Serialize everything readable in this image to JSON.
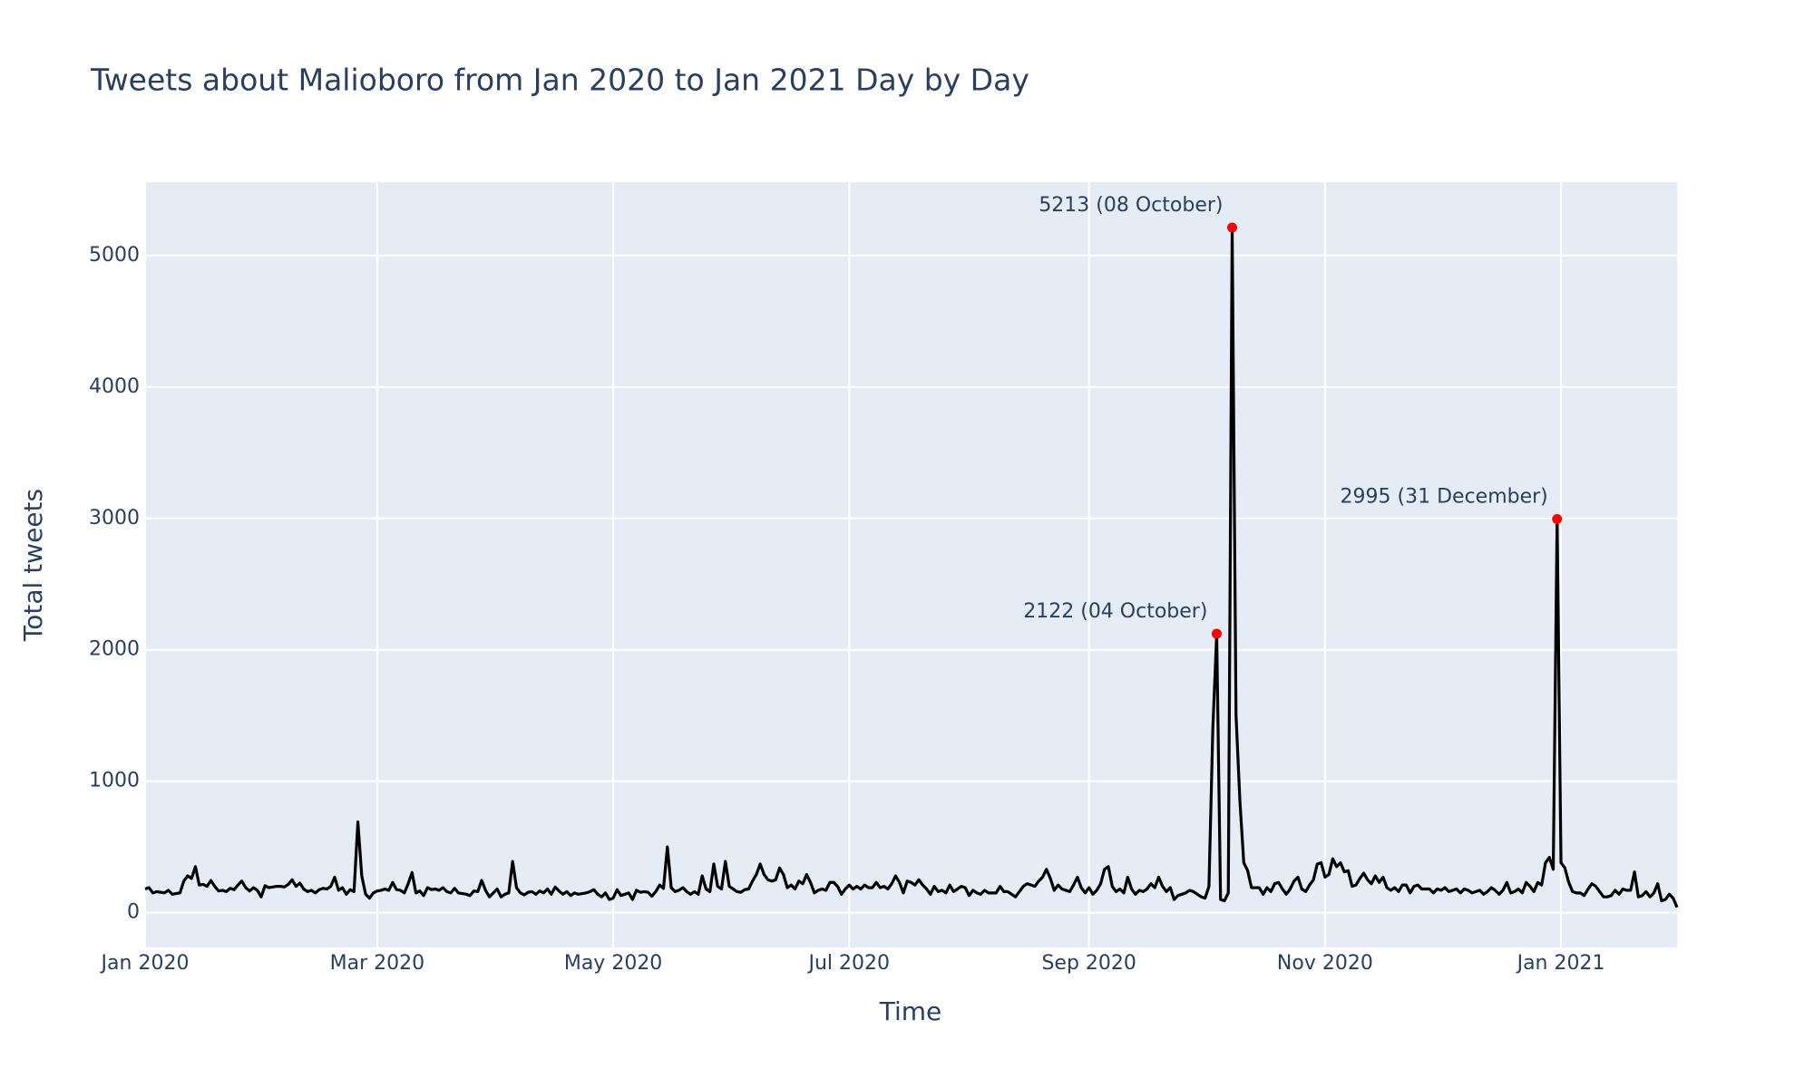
{
  "chart_data": {
    "type": "line",
    "title": "Tweets about Malioboro from Jan 2020 to Jan 2021 Day by Day",
    "x_label": "Time",
    "y_label": "Total tweets",
    "x": [
      "2020-01-01",
      "2020-01-02",
      "2020-01-03",
      "2020-01-04",
      "2020-01-05",
      "2020-01-06",
      "2020-01-07",
      "2020-01-08",
      "2020-01-09",
      "2020-01-10",
      "2020-01-11",
      "2020-01-12",
      "2020-01-13",
      "2020-01-14",
      "2020-01-15",
      "2020-01-16",
      "2020-01-17",
      "2020-01-18",
      "2020-01-19",
      "2020-01-20",
      "2020-01-21",
      "2020-01-22",
      "2020-01-23",
      "2020-01-24",
      "2020-01-25",
      "2020-01-26",
      "2020-01-27",
      "2020-01-28",
      "2020-01-29",
      "2020-01-30",
      "2020-01-31",
      "2020-02-01",
      "2020-02-02",
      "2020-02-03",
      "2020-02-04",
      "2020-02-05",
      "2020-02-06",
      "2020-02-07",
      "2020-02-08",
      "2020-02-09",
      "2020-02-10",
      "2020-02-11",
      "2020-02-12",
      "2020-02-13",
      "2020-02-14",
      "2020-02-15",
      "2020-02-16",
      "2020-02-17",
      "2020-02-18",
      "2020-02-19",
      "2020-02-20",
      "2020-02-21",
      "2020-02-22",
      "2020-02-23",
      "2020-02-24",
      "2020-02-25",
      "2020-02-26",
      "2020-02-27",
      "2020-02-28",
      "2020-02-29",
      "2020-03-01",
      "2020-03-02",
      "2020-03-03",
      "2020-03-04",
      "2020-03-05",
      "2020-03-06",
      "2020-03-07",
      "2020-03-08",
      "2020-03-09",
      "2020-03-10",
      "2020-03-11",
      "2020-03-12",
      "2020-03-13",
      "2020-03-14",
      "2020-03-15",
      "2020-03-16",
      "2020-03-17",
      "2020-03-18",
      "2020-03-19",
      "2020-03-20",
      "2020-03-21",
      "2020-03-22",
      "2020-03-23",
      "2020-03-24",
      "2020-03-25",
      "2020-03-26",
      "2020-03-27",
      "2020-03-28",
      "2020-03-29",
      "2020-03-30",
      "2020-03-31",
      "2020-04-01",
      "2020-04-02",
      "2020-04-03",
      "2020-04-04",
      "2020-04-05",
      "2020-04-06",
      "2020-04-07",
      "2020-04-08",
      "2020-04-09",
      "2020-04-10",
      "2020-04-11",
      "2020-04-12",
      "2020-04-13",
      "2020-04-14",
      "2020-04-15",
      "2020-04-16",
      "2020-04-17",
      "2020-04-18",
      "2020-04-19",
      "2020-04-20",
      "2020-04-21",
      "2020-04-22",
      "2020-04-23",
      "2020-04-24",
      "2020-04-25",
      "2020-04-26",
      "2020-04-27",
      "2020-04-28",
      "2020-04-29",
      "2020-04-30",
      "2020-05-01",
      "2020-05-02",
      "2020-05-03",
      "2020-05-04",
      "2020-05-05",
      "2020-05-06",
      "2020-05-07",
      "2020-05-08",
      "2020-05-09",
      "2020-05-10",
      "2020-05-11",
      "2020-05-12",
      "2020-05-13",
      "2020-05-14",
      "2020-05-15",
      "2020-05-16",
      "2020-05-17",
      "2020-05-18",
      "2020-05-19",
      "2020-05-20",
      "2020-05-21",
      "2020-05-22",
      "2020-05-23",
      "2020-05-24",
      "2020-05-25",
      "2020-05-26",
      "2020-05-27",
      "2020-05-28",
      "2020-05-29",
      "2020-05-30",
      "2020-05-31",
      "2020-06-01",
      "2020-06-02",
      "2020-06-03",
      "2020-06-04",
      "2020-06-05",
      "2020-06-06",
      "2020-06-07",
      "2020-06-08",
      "2020-06-09",
      "2020-06-10",
      "2020-06-11",
      "2020-06-12",
      "2020-06-13",
      "2020-06-14",
      "2020-06-15",
      "2020-06-16",
      "2020-06-17",
      "2020-06-18",
      "2020-06-19",
      "2020-06-20",
      "2020-06-21",
      "2020-06-22",
      "2020-06-23",
      "2020-06-24",
      "2020-06-25",
      "2020-06-26",
      "2020-06-27",
      "2020-06-28",
      "2020-06-29",
      "2020-06-30",
      "2020-07-01",
      "2020-07-02",
      "2020-07-03",
      "2020-07-04",
      "2020-07-05",
      "2020-07-06",
      "2020-07-07",
      "2020-07-08",
      "2020-07-09",
      "2020-07-10",
      "2020-07-11",
      "2020-07-12",
      "2020-07-13",
      "2020-07-14",
      "2020-07-15",
      "2020-07-16",
      "2020-07-17",
      "2020-07-18",
      "2020-07-19",
      "2020-07-20",
      "2020-07-21",
      "2020-07-22",
      "2020-07-23",
      "2020-07-24",
      "2020-07-25",
      "2020-07-26",
      "2020-07-27",
      "2020-07-28",
      "2020-07-29",
      "2020-07-30",
      "2020-07-31",
      "2020-08-01",
      "2020-08-02",
      "2020-08-03",
      "2020-08-04",
      "2020-08-05",
      "2020-08-06",
      "2020-08-07",
      "2020-08-08",
      "2020-08-09",
      "2020-08-10",
      "2020-08-11",
      "2020-08-12",
      "2020-08-13",
      "2020-08-14",
      "2020-08-15",
      "2020-08-16",
      "2020-08-17",
      "2020-08-18",
      "2020-08-19",
      "2020-08-20",
      "2020-08-21",
      "2020-08-22",
      "2020-08-23",
      "2020-08-24",
      "2020-08-25",
      "2020-08-26",
      "2020-08-27",
      "2020-08-28",
      "2020-08-29",
      "2020-08-30",
      "2020-08-31",
      "2020-09-01",
      "2020-09-02",
      "2020-09-03",
      "2020-09-04",
      "2020-09-05",
      "2020-09-06",
      "2020-09-07",
      "2020-09-08",
      "2020-09-09",
      "2020-09-10",
      "2020-09-11",
      "2020-09-12",
      "2020-09-13",
      "2020-09-14",
      "2020-09-15",
      "2020-09-16",
      "2020-09-17",
      "2020-09-18",
      "2020-09-19",
      "2020-09-20",
      "2020-09-21",
      "2020-09-22",
      "2020-09-23",
      "2020-09-24",
      "2020-09-25",
      "2020-09-26",
      "2020-09-27",
      "2020-09-28",
      "2020-09-29",
      "2020-09-30",
      "2020-10-01",
      "2020-10-02",
      "2020-10-03",
      "2020-10-04",
      "2020-10-05",
      "2020-10-06",
      "2020-10-07",
      "2020-10-08",
      "2020-10-09",
      "2020-10-10",
      "2020-10-11",
      "2020-10-12",
      "2020-10-13",
      "2020-10-14",
      "2020-10-15",
      "2020-10-16",
      "2020-10-17",
      "2020-10-18",
      "2020-10-19",
      "2020-10-20",
      "2020-10-21",
      "2020-10-22",
      "2020-10-23",
      "2020-10-24",
      "2020-10-25",
      "2020-10-26",
      "2020-10-27",
      "2020-10-28",
      "2020-10-29",
      "2020-10-30",
      "2020-10-31",
      "2020-11-01",
      "2020-11-02",
      "2020-11-03",
      "2020-11-04",
      "2020-11-05",
      "2020-11-06",
      "2020-11-07",
      "2020-11-08",
      "2020-11-09",
      "2020-11-10",
      "2020-11-11",
      "2020-11-12",
      "2020-11-13",
      "2020-11-14",
      "2020-11-15",
      "2020-11-16",
      "2020-11-17",
      "2020-11-18",
      "2020-11-19",
      "2020-11-20",
      "2020-11-21",
      "2020-11-22",
      "2020-11-23",
      "2020-11-24",
      "2020-11-25",
      "2020-11-26",
      "2020-11-27",
      "2020-11-28",
      "2020-11-29",
      "2020-11-30",
      "2020-12-01",
      "2020-12-02",
      "2020-12-03",
      "2020-12-04",
      "2020-12-05",
      "2020-12-06",
      "2020-12-07",
      "2020-12-08",
      "2020-12-09",
      "2020-12-10",
      "2020-12-11",
      "2020-12-12",
      "2020-12-13",
      "2020-12-14",
      "2020-12-15",
      "2020-12-16",
      "2020-12-17",
      "2020-12-18",
      "2020-12-19",
      "2020-12-20",
      "2020-12-21",
      "2020-12-22",
      "2020-12-23",
      "2020-12-24",
      "2020-12-25",
      "2020-12-26",
      "2020-12-27",
      "2020-12-28",
      "2020-12-29",
      "2020-12-30",
      "2020-12-31",
      "2021-01-01",
      "2021-01-02",
      "2021-01-03",
      "2021-01-04",
      "2021-01-05",
      "2021-01-06",
      "2021-01-07",
      "2021-01-08",
      "2021-01-09",
      "2021-01-10",
      "2021-01-11",
      "2021-01-12",
      "2021-01-13",
      "2021-01-14",
      "2021-01-15",
      "2021-01-16",
      "2021-01-17",
      "2021-01-18",
      "2021-01-19",
      "2021-01-20",
      "2021-01-21",
      "2021-01-22",
      "2021-01-23",
      "2021-01-24",
      "2021-01-25",
      "2021-01-26",
      "2021-01-27",
      "2021-01-28",
      "2021-01-29",
      "2021-01-30",
      "2021-01-31"
    ],
    "values": [
      180,
      190,
      150,
      160,
      155,
      150,
      170,
      140,
      145,
      150,
      240,
      280,
      260,
      350,
      210,
      215,
      200,
      245,
      200,
      165,
      170,
      160,
      185,
      175,
      210,
      240,
      190,
      165,
      190,
      170,
      120,
      205,
      190,
      195,
      200,
      200,
      195,
      215,
      250,
      200,
      225,
      180,
      160,
      170,
      150,
      175,
      185,
      180,
      200,
      270,
      170,
      190,
      140,
      175,
      160,
      690,
      280,
      140,
      110,
      150,
      165,
      170,
      180,
      170,
      230,
      175,
      170,
      150,
      220,
      305,
      150,
      165,
      130,
      190,
      175,
      180,
      170,
      190,
      160,
      150,
      185,
      150,
      145,
      140,
      130,
      165,
      160,
      245,
      170,
      120,
      150,
      180,
      120,
      140,
      150,
      390,
      190,
      150,
      135,
      155,
      160,
      140,
      165,
      150,
      180,
      140,
      195,
      165,
      140,
      160,
      130,
      150,
      140,
      145,
      150,
      160,
      175,
      140,
      120,
      150,
      100,
      110,
      175,
      130,
      140,
      150,
      100,
      170,
      155,
      160,
      155,
      125,
      160,
      210,
      185,
      500,
      190,
      160,
      170,
      190,
      160,
      140,
      160,
      140,
      280,
      180,
      160,
      370,
      200,
      180,
      390,
      200,
      180,
      160,
      155,
      175,
      180,
      240,
      290,
      370,
      290,
      250,
      240,
      250,
      340,
      290,
      190,
      210,
      180,
      240,
      220,
      290,
      230,
      150,
      170,
      180,
      170,
      230,
      230,
      200,
      140,
      180,
      210,
      180,
      200,
      180,
      210,
      190,
      190,
      230,
      190,
      200,
      180,
      220,
      280,
      230,
      150,
      240,
      230,
      210,
      250,
      210,
      180,
      140,
      200,
      160,
      170,
      150,
      210,
      160,
      180,
      200,
      190,
      130,
      170,
      150,
      140,
      170,
      150,
      150,
      150,
      200,
      160,
      160,
      140,
      120,
      160,
      200,
      220,
      210,
      200,
      240,
      270,
      330,
      260,
      170,
      210,
      180,
      170,
      160,
      210,
      270,
      190,
      150,
      190,
      140,
      170,
      220,
      330,
      350,
      200,
      160,
      180,
      150,
      270,
      180,
      140,
      170,
      160,
      180,
      220,
      190,
      270,
      200,
      160,
      190,
      100,
      130,
      140,
      150,
      170,
      160,
      140,
      120,
      110,
      200,
      1400,
      2122,
      100,
      90,
      150,
      5213,
      1500,
      850,
      380,
      320,
      190,
      190,
      190,
      140,
      190,
      160,
      220,
      230,
      180,
      140,
      180,
      240,
      270,
      180,
      160,
      210,
      250,
      370,
      380,
      270,
      290,
      410,
      350,
      380,
      310,
      320,
      200,
      210,
      260,
      300,
      250,
      220,
      280,
      230,
      270,
      190,
      170,
      190,
      160,
      210,
      210,
      150,
      200,
      210,
      180,
      180,
      180,
      150,
      180,
      170,
      190,
      160,
      170,
      180,
      150,
      180,
      170,
      150,
      160,
      170,
      140,
      160,
      190,
      170,
      140,
      170,
      230,
      150,
      160,
      180,
      150,
      230,
      200,
      160,
      230,
      210,
      380,
      420,
      330,
      2995,
      380,
      340,
      230,
      160,
      150,
      150,
      130,
      180,
      220,
      200,
      160,
      120,
      120,
      130,
      170,
      140,
      180,
      170,
      170,
      310,
      120,
      130,
      160,
      120,
      150,
      220,
      90,
      100,
      140,
      110,
      40
    ],
    "color": "#000000",
    "annotations": [
      {
        "text": "5213 (08 October)",
        "x": "2020-10-08",
        "y": 5213
      },
      {
        "text": "2122 (04 October)",
        "x": "2020-10-04",
        "y": 2122
      },
      {
        "text": "2995 (31 December)",
        "x": "2020-12-31",
        "y": 2995
      }
    ],
    "marker_color": "#ff0000",
    "xlim": [
      "2020-01-01",
      "2021-01-31"
    ],
    "xticks": [
      {
        "value": "2020-01-01",
        "label": "Jan 2020"
      },
      {
        "value": "2020-03-01",
        "label": "Mar 2020"
      },
      {
        "value": "2020-05-01",
        "label": "May 2020"
      },
      {
        "value": "2020-07-01",
        "label": "Jul 2020"
      },
      {
        "value": "2020-09-01",
        "label": "Sep 2020"
      },
      {
        "value": "2020-11-01",
        "label": "Nov 2020"
      },
      {
        "value": "2021-01-01",
        "label": "Jan 2021"
      }
    ],
    "ylim": [
      -265,
      5558
    ],
    "yticks": [
      0,
      1000,
      2000,
      3000,
      4000,
      5000
    ],
    "grid": true
  }
}
